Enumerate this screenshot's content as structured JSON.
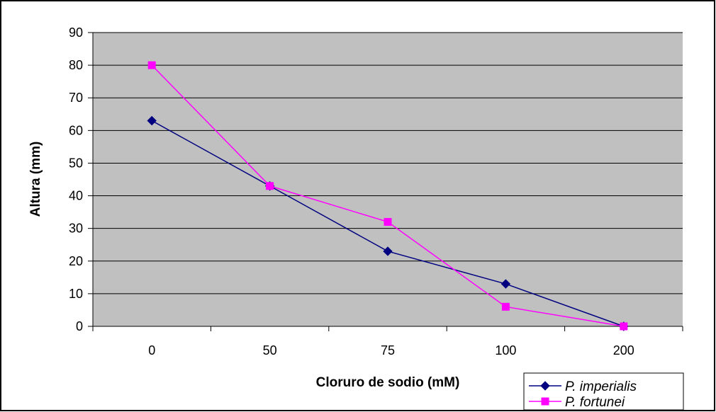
{
  "chart_data": {
    "type": "line",
    "categories": [
      "0",
      "50",
      "75",
      "100",
      "200"
    ],
    "series": [
      {
        "name": "P. imperialis",
        "values": [
          63,
          43,
          23,
          13,
          0
        ],
        "color": "#000080",
        "marker": "diamond"
      },
      {
        "name": "P. fortunei",
        "values": [
          80,
          43,
          32,
          6,
          0
        ],
        "color": "#FF00FF",
        "marker": "square"
      }
    ],
    "xlabel": "Cloruro de sodio (mM)",
    "ylabel": "Altura (mm)",
    "ylim": [
      0,
      90
    ],
    "yticks": [
      0,
      10,
      20,
      30,
      40,
      50,
      60,
      70,
      80,
      90
    ],
    "grid": true,
    "legend": "bottom-right",
    "plot_background": "#C0C0C0"
  }
}
